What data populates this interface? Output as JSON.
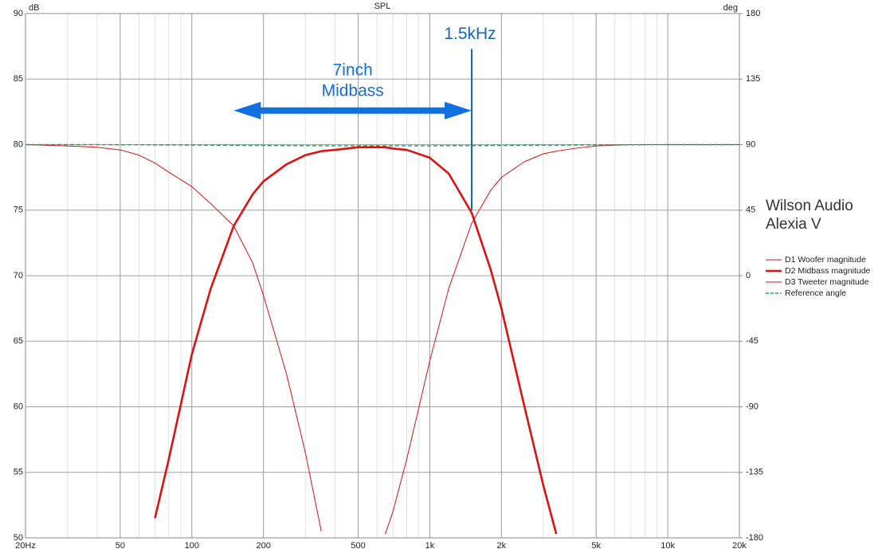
{
  "chart_data": {
    "type": "line",
    "title": "SPL",
    "ylabel": "dB",
    "y2label": "deg",
    "log_x": true,
    "grid": true,
    "xlim": [
      20,
      20000
    ],
    "ylim": [
      50,
      90
    ],
    "y2lim": [
      -180,
      180
    ],
    "xticks": [
      {
        "value": 20,
        "label": "20Hz"
      },
      50,
      100,
      200,
      500,
      {
        "value": 1000,
        "label": "1k"
      },
      {
        "value": 2000,
        "label": "2k"
      },
      {
        "value": 5000,
        "label": "5k"
      },
      {
        "value": 10000,
        "label": "10k"
      },
      {
        "value": 20000,
        "label": "20k"
      }
    ],
    "yticks": [
      50,
      55,
      60,
      65,
      70,
      75,
      80,
      85,
      90
    ],
    "y2ticks": [
      -180,
      -135,
      -90,
      -45,
      0,
      45,
      90,
      135,
      180
    ],
    "x": [
      20,
      30,
      40,
      50,
      60,
      70,
      80,
      100,
      120,
      150,
      180,
      200,
      250,
      300,
      350,
      400,
      500,
      600,
      650,
      700,
      800,
      1000,
      1200,
      1500,
      1800,
      2000,
      2500,
      3000,
      3400,
      4000,
      5000,
      7000,
      10000,
      20000
    ],
    "series": [
      {
        "name": "D1 Woofer magnitude",
        "color": "#e01010",
        "width": 1,
        "values": [
          80,
          79.9,
          79.8,
          79.6,
          79.2,
          78.6,
          77.9,
          76.8,
          75.5,
          73.8,
          71,
          68.5,
          62.5,
          56.5,
          50.5,
          null,
          null,
          null,
          null,
          null,
          null,
          null,
          null,
          null,
          null,
          null,
          null,
          null,
          null,
          null,
          null,
          null,
          null,
          null
        ]
      },
      {
        "name": "D2 Midbass magnitude",
        "color": "#e01010",
        "width": 2.6,
        "values": [
          null,
          null,
          null,
          null,
          null,
          51.5,
          56,
          64,
          69,
          73.8,
          76.2,
          77.2,
          78.5,
          79.2,
          79.5,
          79.6,
          79.8,
          79.8,
          79.8,
          79.7,
          79.6,
          79,
          77.8,
          74.8,
          70.5,
          67.5,
          60,
          54,
          50.3,
          null,
          null,
          null,
          null,
          null
        ]
      },
      {
        "name": "D3 Tweeter magnitude",
        "color": "#e01010",
        "width": 1,
        "values": [
          null,
          null,
          null,
          null,
          null,
          null,
          null,
          null,
          null,
          null,
          null,
          null,
          null,
          null,
          null,
          null,
          null,
          null,
          50.3,
          52,
          56,
          63.5,
          69,
          74,
          76.5,
          77.5,
          78.7,
          79.3,
          79.5,
          79.7,
          79.9,
          80,
          80,
          80
        ]
      },
      {
        "name": "Reference angle",
        "color": "#2a9a5a",
        "width": 1.4,
        "dashed": true,
        "axis": "y2",
        "values": [
          90,
          90,
          90,
          89.9,
          89.9,
          89.8,
          89.8,
          89.7,
          89.6,
          89.5,
          89.4,
          89.4,
          89.3,
          89.3,
          89.2,
          89.2,
          89.2,
          89.2,
          89.2,
          89.2,
          89.2,
          89.2,
          89.3,
          89.3,
          89.4,
          89.4,
          89.5,
          89.6,
          89.6,
          89.7,
          89.8,
          89.9,
          90,
          90
        ]
      }
    ],
    "marker": {
      "label": "1.5kHz",
      "x": 1500,
      "y": [
        75,
        87.3
      ],
      "color": "#1565c0"
    },
    "arrow": {
      "label": [
        "7inch",
        "Midbass"
      ],
      "x": [
        150,
        1500
      ],
      "y": 82.6,
      "color": "#1070e0"
    },
    "side_note": [
      "Wilson Audio",
      "Alexia V"
    ]
  }
}
